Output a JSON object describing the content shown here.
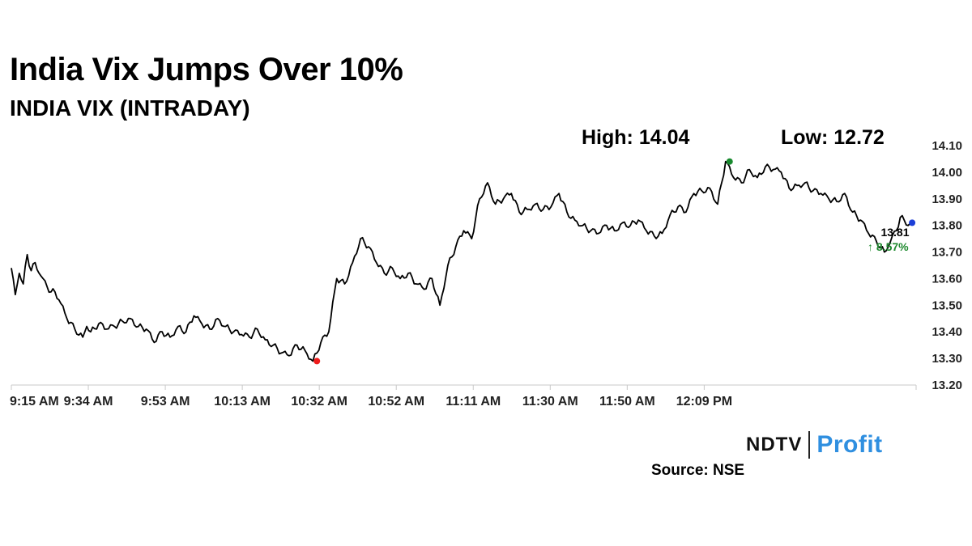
{
  "header": {
    "title": "India Vix Jumps Over 10%",
    "subtitle": "INDIA VIX (INTRADAY)"
  },
  "stats": {
    "high_label": "High: 14.04",
    "low_label": "Low: 12.72"
  },
  "chart_data": {
    "type": "line",
    "title": "India Vix Jumps Over 10%",
    "subtitle": "INDIA VIX (INTRADAY)",
    "xlabel": "",
    "ylabel": "",
    "x_ticks": [
      "9:15 AM",
      "9:34 AM",
      "9:53 AM",
      "10:13 AM",
      "10:32 AM",
      "10:52 AM",
      "11:11 AM",
      "11:30 AM",
      "11:50 AM",
      "12:09 PM"
    ],
    "y_ticks": [
      "13.20",
      "13.30",
      "13.40",
      "13.50",
      "13.60",
      "13.70",
      "13.80",
      "13.90",
      "14.00",
      "14.10"
    ],
    "ylim": [
      13.2,
      14.1
    ],
    "y_axis_position": "right",
    "grid": false,
    "series": [
      {
        "minutes": [
          0,
          1,
          2,
          3,
          4,
          5,
          6,
          7,
          8,
          9,
          10,
          11,
          12,
          14,
          16,
          18,
          19,
          20,
          22,
          24,
          26,
          28,
          30,
          32,
          34,
          36,
          38,
          40,
          42,
          44,
          46,
          48,
          50,
          52,
          54,
          56,
          58,
          60,
          62,
          64,
          66,
          68,
          70,
          72,
          74,
          76,
          78,
          80,
          82,
          84,
          86,
          88,
          90,
          92,
          94,
          96,
          98,
          100,
          102,
          104,
          106,
          108,
          110,
          112,
          114,
          116,
          118,
          120,
          122,
          124,
          126,
          128,
          130,
          132,
          134,
          136,
          138,
          140,
          142,
          144,
          146,
          148,
          150,
          152,
          154,
          156,
          158,
          160,
          162,
          164,
          166,
          168,
          170,
          172,
          174,
          176,
          178,
          180,
          182,
          184,
          186,
          188,
          190,
          192,
          194,
          196,
          198,
          200,
          202,
          204,
          206,
          208,
          210,
          212,
          214,
          216,
          218,
          220,
          221,
          222,
          223,
          224,
          225,
          226,
          227
        ],
        "values": [
          13.64,
          13.54,
          13.62,
          13.58,
          13.69,
          13.63,
          13.66,
          13.62,
          13.6,
          13.57,
          13.55,
          13.55,
          13.52,
          13.45,
          13.41,
          13.38,
          13.42,
          13.4,
          13.43,
          13.41,
          13.42,
          13.44,
          13.45,
          13.42,
          13.41,
          13.36,
          13.4,
          13.38,
          13.42,
          13.4,
          13.46,
          13.43,
          13.41,
          13.45,
          13.42,
          13.4,
          13.39,
          13.38,
          13.41,
          13.37,
          13.35,
          13.32,
          13.31,
          13.35,
          13.33,
          13.29,
          13.36,
          13.4,
          13.6,
          13.58,
          13.66,
          13.75,
          13.72,
          13.66,
          13.62,
          13.64,
          13.6,
          13.62,
          13.58,
          13.56,
          13.6,
          13.5,
          13.65,
          13.72,
          13.78,
          13.75,
          13.9,
          13.96,
          13.88,
          13.9,
          13.92,
          13.85,
          13.86,
          13.88,
          13.86,
          13.87,
          13.92,
          13.85,
          13.82,
          13.8,
          13.78,
          13.77,
          13.8,
          13.78,
          13.81,
          13.8,
          13.82,
          13.78,
          13.76,
          13.77,
          13.84,
          13.87,
          13.85,
          13.92,
          13.93,
          13.94,
          13.88,
          14.04,
          13.98,
          13.96,
          14.01,
          13.98,
          14.02,
          14.01,
          14.0,
          13.94,
          13.95,
          13.96,
          13.93,
          13.92,
          13.9,
          13.89,
          13.92,
          13.85,
          13.82,
          13.77,
          13.74,
          13.7,
          13.72,
          13.76,
          13.78,
          13.83,
          13.82,
          13.8,
          13.81
        ]
      }
    ],
    "markers": [
      {
        "name": "low-point",
        "minute": 77,
        "value": 13.29,
        "color": "#ee1c1c"
      },
      {
        "name": "high-point",
        "minute": 181,
        "value": 14.04,
        "color": "#188a2e"
      },
      {
        "name": "last-point",
        "minute": 227,
        "value": 13.81,
        "color": "#1c3fd8"
      }
    ],
    "last_value_label": "13.81",
    "change_label": "↑ 8.57%",
    "line_color": "#000000",
    "change_color": "#1f8a2f"
  },
  "branding": {
    "logo_ndtv": "NDTV",
    "logo_profit": "Profit",
    "source": "Source: NSE"
  }
}
